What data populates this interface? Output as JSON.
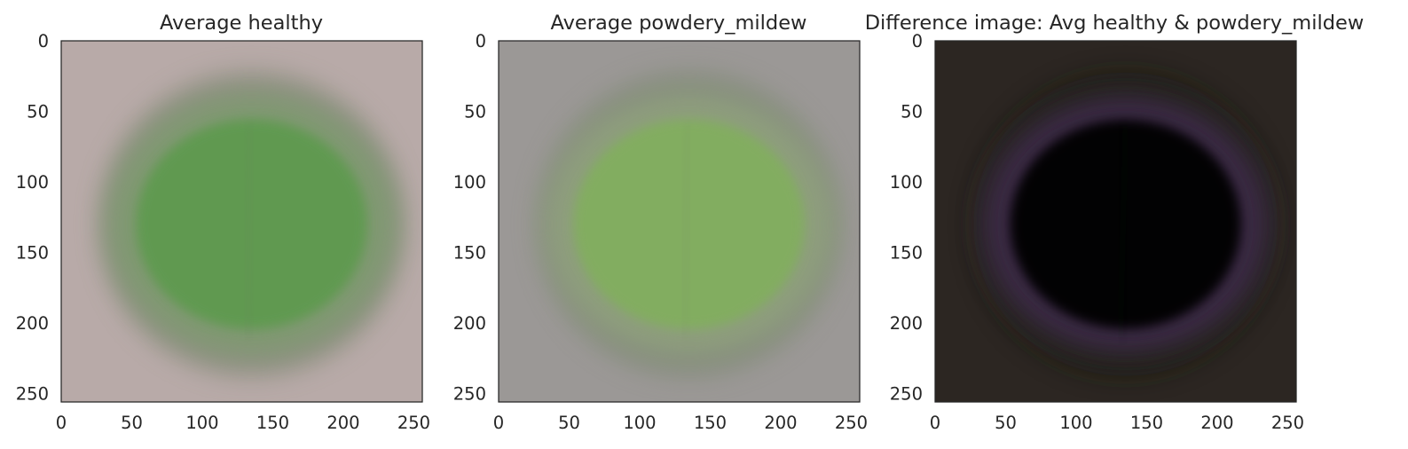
{
  "chart_data": [
    {
      "type": "heatmap",
      "title": "Average healthy",
      "xlabel": "",
      "ylabel": "",
      "xlim": [
        0,
        256
      ],
      "ylim": [
        256,
        0
      ],
      "xticks": [
        0,
        50,
        100,
        150,
        200,
        250
      ],
      "yticks": [
        0,
        50,
        100,
        150,
        200,
        250
      ],
      "image": {
        "description": "averaged leaf image",
        "background": "#b8aaa8",
        "leaf_color": "#5f9a4f",
        "leaf_edge_color": "#7e9a70",
        "shadow_color": "#6d7c63"
      }
    },
    {
      "type": "heatmap",
      "title": "Average powdery_mildew",
      "xlabel": "",
      "ylabel": "",
      "xlim": [
        0,
        256
      ],
      "ylim": [
        256,
        0
      ],
      "xticks": [
        0,
        50,
        100,
        150,
        200,
        250
      ],
      "yticks": [
        0,
        50,
        100,
        150,
        200,
        250
      ],
      "image": {
        "description": "averaged leaf image",
        "background": "#9b9896",
        "leaf_color": "#82ae5e",
        "leaf_edge_color": "#8fa07d",
        "shadow_color": "#76846b"
      }
    },
    {
      "type": "heatmap",
      "title": "Difference image: Avg healthy & powdery_mildew",
      "xlabel": "",
      "ylabel": "",
      "xlim": [
        0,
        256
      ],
      "ylim": [
        256,
        0
      ],
      "xticks": [
        0,
        50,
        100,
        150,
        200,
        250
      ],
      "yticks": [
        0,
        50,
        100,
        150,
        200,
        250
      ],
      "image": {
        "description": "difference image",
        "background": "#2c2622",
        "leaf_color": "#030204",
        "leaf_edge_color": "#3d2b4a",
        "shadow_color": "#141a10"
      }
    }
  ]
}
